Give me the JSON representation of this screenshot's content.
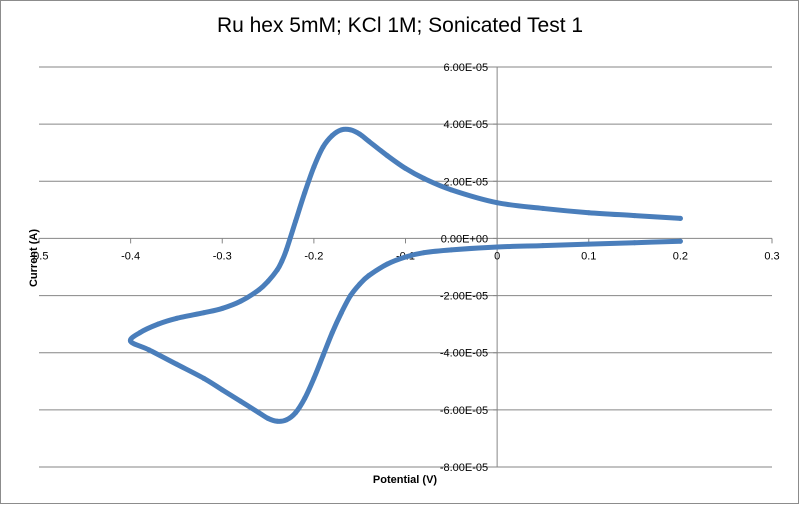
{
  "chart_data": {
    "type": "scatter",
    "title": "Ru hex 5mM; KCl 1M; Sonicated Test 1",
    "xlabel": "Potential (V)",
    "ylabel": "Current (A)",
    "xlim": [
      -0.5,
      0.3
    ],
    "ylim": [
      -8e-05,
      6e-05
    ],
    "x_ticks": [
      "-0.5",
      "-0.4",
      "-0.3",
      "-0.2",
      "-0.1",
      "0",
      "0.1",
      "0.2",
      "0.3"
    ],
    "y_ticks": [
      "6.00E-05",
      "4.00E-05",
      "2.00E-05",
      "0.00E+00",
      "-2.00E-05",
      "-4.00E-05",
      "-6.00E-05",
      "-8.00E-05"
    ],
    "grid": "horizontal",
    "legend": "none",
    "series_color": "#4a7ebb",
    "series": [
      {
        "x": [
          0.2,
          0.15,
          0.1,
          0.05,
          0.0,
          -0.05,
          -0.08,
          -0.1,
          -0.12,
          -0.14,
          -0.15,
          -0.16,
          -0.17,
          -0.18,
          -0.19,
          -0.2,
          -0.21,
          -0.22,
          -0.23,
          -0.24,
          -0.25,
          -0.26,
          -0.28,
          -0.3,
          -0.32,
          -0.35,
          -0.38,
          -0.4,
          -0.39,
          -0.37,
          -0.35,
          -0.32,
          -0.3,
          -0.28,
          -0.26,
          -0.25,
          -0.24,
          -0.235,
          -0.23,
          -0.22,
          -0.21,
          -0.2,
          -0.19,
          -0.18,
          -0.17,
          -0.16,
          -0.15,
          -0.14,
          -0.12,
          -0.1,
          -0.08,
          -0.05,
          0.0,
          0.05,
          0.1,
          0.15,
          0.2
        ],
        "y": [
          -1e-06,
          -1.5e-06,
          -2e-06,
          -2.5e-06,
          -3e-06,
          -4e-06,
          -5e-06,
          -6.5e-06,
          -9e-06,
          -1.3e-05,
          -1.6e-05,
          -2e-05,
          -2.6e-05,
          -3.3e-05,
          -4.1e-05,
          -4.9e-05,
          -5.6e-05,
          -6.1e-05,
          -6.35e-05,
          -6.4e-05,
          -6.3e-05,
          -6.1e-05,
          -5.7e-05,
          -5.3e-05,
          -4.9e-05,
          -4.4e-05,
          -3.9e-05,
          -3.6e-05,
          -3.3e-05,
          -3e-05,
          -2.8e-05,
          -2.6e-05,
          -2.45e-05,
          -2.2e-05,
          -1.8e-05,
          -1.5e-05,
          -1.1e-05,
          -8e-06,
          -4e-06,
          6e-06,
          1.6e-05,
          2.5e-05,
          3.2e-05,
          3.6e-05,
          3.8e-05,
          3.8e-05,
          3.65e-05,
          3.4e-05,
          2.9e-05,
          2.45e-05,
          2.1e-05,
          1.7e-05,
          1.25e-05,
          1.05e-05,
          9e-06,
          8e-06,
          7e-06
        ]
      }
    ]
  }
}
